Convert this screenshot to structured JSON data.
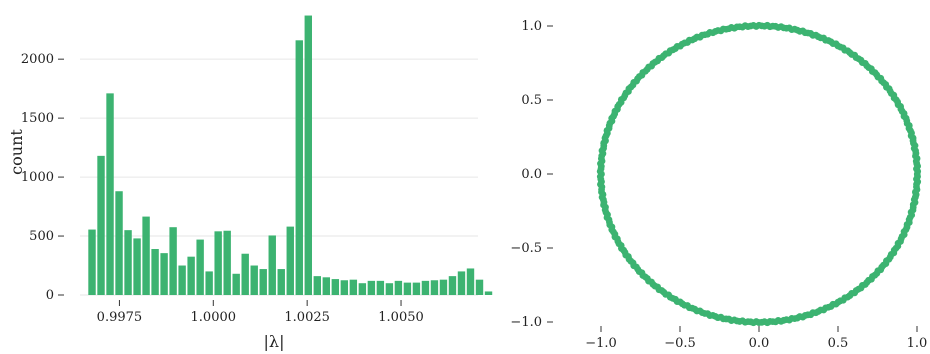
{
  "colors": {
    "accent": "#3cb371",
    "grid": "#e6e6e6",
    "text": "#222222"
  },
  "chart_data": [
    {
      "type": "bar",
      "subtype": "histogram",
      "xlabel": "|λ|",
      "ylabel": "count",
      "xlim": [
        0.99645,
        1.00705
      ],
      "ylim": [
        0,
        2400
      ],
      "xticks": [
        0.9975,
        1.0,
        1.0025,
        1.005
      ],
      "xtick_labels": [
        "0.9975",
        "1.0000",
        "1.0025",
        "1.0050"
      ],
      "yticks": [
        0,
        500,
        1000,
        1500,
        2000
      ],
      "ytick_labels": [
        "0",
        "500",
        "1000",
        "1500",
        "2000"
      ],
      "grid": "horizontal",
      "bin_start": 0.99665,
      "bin_width": 0.00024,
      "values": [
        555,
        1180,
        1710,
        880,
        550,
        480,
        665,
        390,
        355,
        575,
        250,
        325,
        470,
        200,
        540,
        545,
        180,
        350,
        250,
        220,
        505,
        220,
        580,
        2160,
        2370,
        160,
        150,
        135,
        125,
        130,
        100,
        120,
        120,
        100,
        120,
        105,
        105,
        120,
        125,
        130,
        160,
        200,
        225,
        130,
        30
      ]
    },
    {
      "type": "scatter",
      "description_shape": "unit circle",
      "xlim": [
        -1.1,
        1.1
      ],
      "ylim": [
        -1.05,
        1.05
      ],
      "xticks": [
        -1.0,
        -0.5,
        0.0,
        0.5,
        1.0
      ],
      "xtick_labels": [
        "−1.0",
        "−0.5",
        "0.0",
        "0.5",
        "1.0"
      ],
      "yticks": [
        -1.0,
        -0.5,
        0.0,
        0.5,
        1.0
      ],
      "ytick_labels": [
        "−1.0",
        "−0.5",
        "0.0",
        "0.5",
        "1.0"
      ],
      "grid": "none",
      "points": "360 points evenly spaced on |z| ≈ 1 (radius range 0.997–1.006)",
      "n_points": 360,
      "radius_min": 0.997,
      "radius_max": 1.006
    }
  ]
}
